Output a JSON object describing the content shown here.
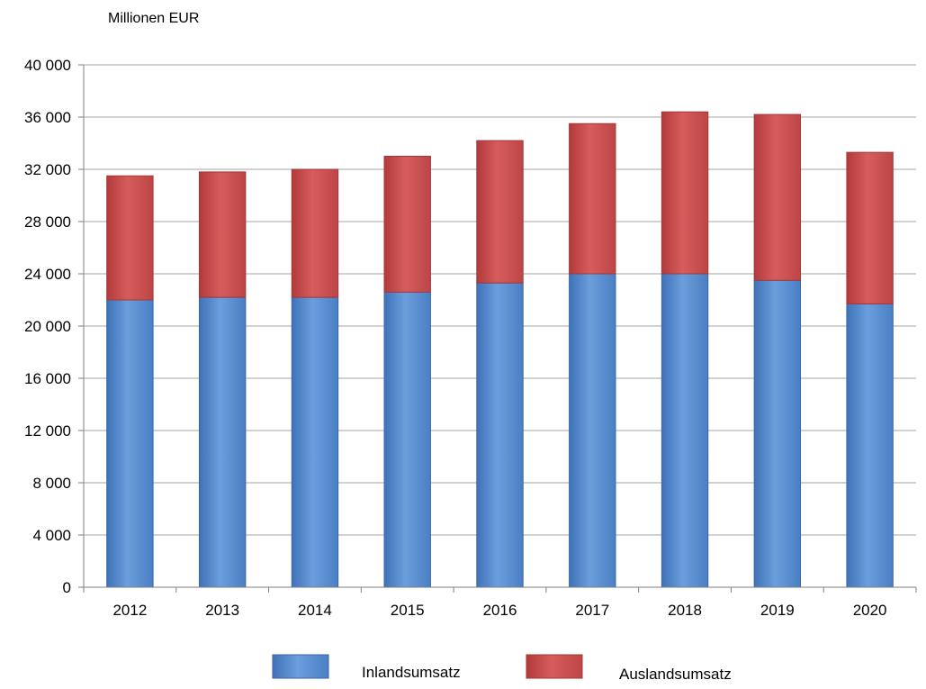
{
  "chart_data": {
    "type": "bar",
    "stacked": true,
    "title": "",
    "unit_label": "Millionen EUR",
    "xlabel": "",
    "ylabel": "",
    "categories": [
      "2012",
      "2013",
      "2014",
      "2015",
      "2016",
      "2017",
      "2018",
      "2019",
      "2020"
    ],
    "series": [
      {
        "name": "Inlandsumsatz",
        "color": "#5b8fd2",
        "values": [
          22000,
          22200,
          22200,
          22600,
          23300,
          24000,
          24000,
          23500,
          21700
        ]
      },
      {
        "name": "Auslandsumsatz",
        "color": "#cd4f4f",
        "values": [
          9500,
          9600,
          9800,
          10400,
          10900,
          11500,
          12400,
          12700,
          11600
        ]
      }
    ],
    "ylim": [
      0,
      40000
    ],
    "yticks": [
      0,
      4000,
      8000,
      12000,
      16000,
      20000,
      24000,
      28000,
      32000,
      36000,
      40000
    ],
    "ytick_labels": [
      "0",
      "4 000",
      "8 000",
      "12 000",
      "16 000",
      "20 000",
      "24 000",
      "28 000",
      "32 000",
      "36 000",
      "40 000"
    ],
    "grid": "horizontal",
    "legend_position": "bottom"
  }
}
